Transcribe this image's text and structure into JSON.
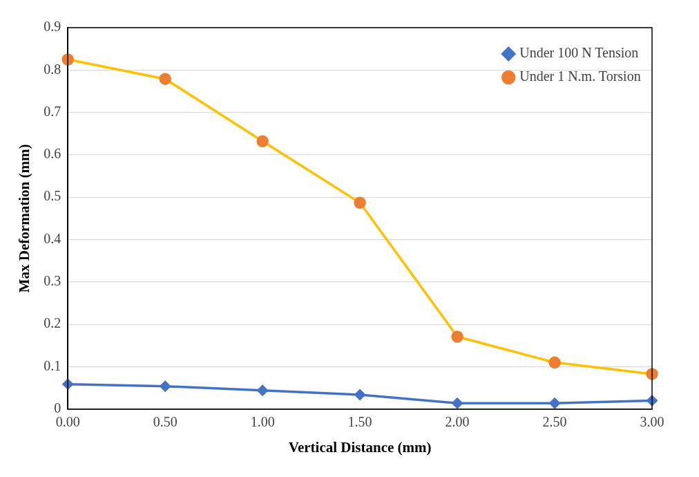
{
  "chart_data": {
    "type": "line",
    "xlabel": "Vertical Distance (mm)",
    "ylabel": "Max Deformation (mm)",
    "categories": [
      "0.00",
      "0.50",
      "1.00",
      "1.50",
      "2.00",
      "2.50",
      "3.00"
    ],
    "series": [
      {
        "name": "Under 100 N Tension",
        "color": "#4472c4",
        "marker": "diamond",
        "values": [
          0.059,
          0.054,
          0.044,
          0.034,
          0.014,
          0.014,
          0.02
        ]
      },
      {
        "name": "Under 1 N.m. Torsion",
        "color": "#ffc000",
        "colors": [
          "#ed7d31",
          "#ed7d31",
          "#ed7d31",
          "#ed7d31",
          "#ed7d31",
          "#ed7d31",
          "#ed7d31"
        ],
        "marker": "circle",
        "values": [
          0.825,
          0.779,
          0.632,
          0.487,
          0.171,
          0.11,
          0.083
        ]
      }
    ],
    "ylim": [
      0,
      0.9
    ],
    "yticks": [
      0,
      0.1,
      0.2,
      0.3,
      0.4,
      0.5,
      0.6,
      0.7,
      0.8,
      0.9
    ],
    "grid": "y",
    "legend": "top right"
  }
}
